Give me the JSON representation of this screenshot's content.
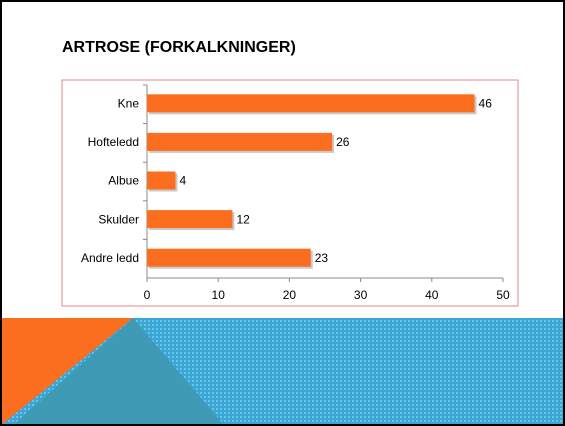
{
  "chart_data": {
    "type": "bar",
    "orientation": "horizontal",
    "title": "ARTROSE (FORKALKNINGER)",
    "categories": [
      "Kne",
      "Hofteledd",
      "Albue",
      "Skulder",
      "Andre ledd"
    ],
    "values": [
      46,
      26,
      4,
      12,
      23
    ],
    "color": "#fc6e1f",
    "xlim": [
      0,
      50
    ],
    "xticks": [
      0,
      10,
      20,
      30,
      40,
      50
    ],
    "grid": false
  }
}
